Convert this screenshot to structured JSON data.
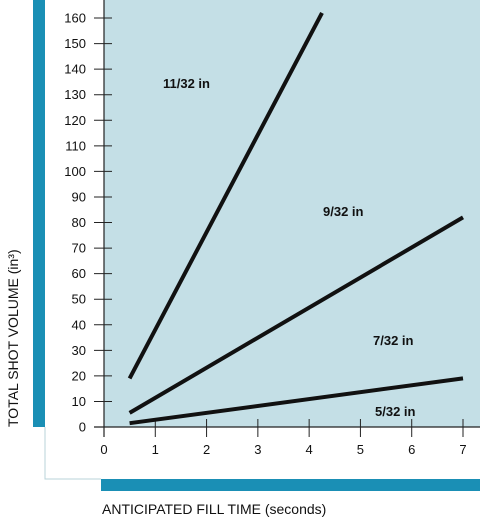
{
  "chart_data": {
    "type": "line",
    "title": "",
    "xlabel": "ANTICIPATED FILL TIME (seconds)",
    "ylabel": "TOTAL SHOT VOLUME (in³)",
    "xlim": [
      0,
      7
    ],
    "ylim": [
      0,
      165
    ],
    "x_ticks": [
      "0",
      "1",
      "2",
      "3",
      "4",
      "5",
      "6",
      "7"
    ],
    "y_ticks": [
      "0",
      "10",
      "20",
      "30",
      "40",
      "50",
      "60",
      "70",
      "80",
      "90",
      "100",
      "110",
      "120",
      "130",
      "140",
      "150",
      "160"
    ],
    "grid": false,
    "series": [
      {
        "name": "11/32 in",
        "x": [
          0.5,
          4.25
        ],
        "y": [
          19,
          162
        ]
      },
      {
        "name": "9/32 in",
        "x": [
          0.5,
          7.0
        ],
        "y": [
          5.5,
          82
        ]
      },
      {
        "name": "7/32 in",
        "x": [
          0.5,
          7.0
        ],
        "y": [
          1.5,
          19
        ]
      },
      {
        "name": "5/32 in",
        "x": [],
        "y": []
      }
    ],
    "line_color": "#111111"
  },
  "colors": {
    "plot_background": "#c4dfe6",
    "accent_bar": "#1a8fb5"
  }
}
